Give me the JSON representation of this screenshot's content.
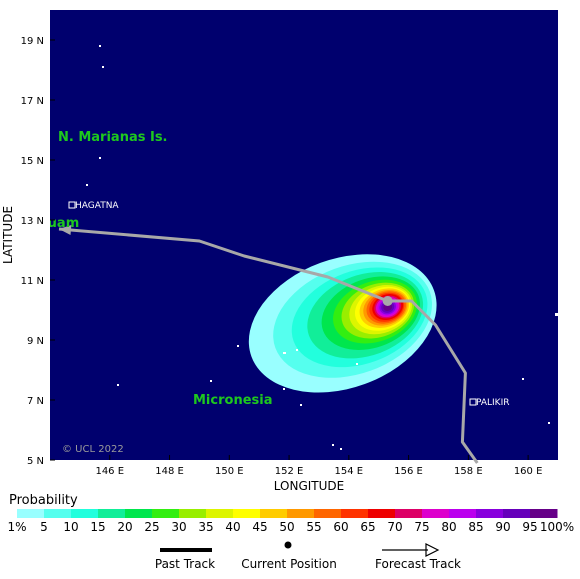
{
  "map": {
    "region_labels": {
      "marianas": "N. Marianas Is.",
      "guam": "Guam",
      "micronesia": "Micronesia"
    },
    "cities": [
      {
        "name": "HAGATNA",
        "lon": 144.75,
        "lat": 13.47
      },
      {
        "name": "PALIKIR",
        "lon": 158.17,
        "lat": 6.92
      }
    ],
    "copyright": "© UCL 2022",
    "x_axis": {
      "label": "LONGITUDE",
      "range": [
        144,
        161
      ],
      "ticks": [
        {
          "v": 146,
          "t": "146 E"
        },
        {
          "v": 148,
          "t": "148 E"
        },
        {
          "v": 150,
          "t": "150 E"
        },
        {
          "v": 152,
          "t": "152 E"
        },
        {
          "v": 154,
          "t": "154 E"
        },
        {
          "v": 156,
          "t": "156 E"
        },
        {
          "v": 158,
          "t": "158 E"
        },
        {
          "v": 160,
          "t": "160 E"
        }
      ]
    },
    "y_axis": {
      "label": "LATITUDE",
      "range": [
        5,
        20
      ],
      "ticks": [
        {
          "v": 5,
          "t": "5 N"
        },
        {
          "v": 7,
          "t": "7 N"
        },
        {
          "v": 9,
          "t": "9 N"
        },
        {
          "v": 11,
          "t": "11 N"
        },
        {
          "v": 13,
          "t": "13 N"
        },
        {
          "v": 15,
          "t": "15 N"
        },
        {
          "v": 17,
          "t": "17 N"
        },
        {
          "v": 19,
          "t": "19 N"
        }
      ]
    },
    "colors": {
      "ocean": "#00006e",
      "track": "#a8a8a8",
      "region_text": "#1ec81e"
    },
    "current_position": {
      "lon": 155.3,
      "lat": 10.3
    },
    "past_track": [
      {
        "lon": 158.3,
        "lat": 4.9
      },
      {
        "lon": 157.8,
        "lat": 5.6
      },
      {
        "lon": 157.9,
        "lat": 7.9
      },
      {
        "lon": 156.9,
        "lat": 9.5
      },
      {
        "lon": 156.1,
        "lat": 10.3
      },
      {
        "lon": 155.3,
        "lat": 10.3
      }
    ],
    "forecast_track": [
      {
        "lon": 155.3,
        "lat": 10.3
      },
      {
        "lon": 153.3,
        "lat": 11.1
      },
      {
        "lon": 150.5,
        "lat": 11.8
      },
      {
        "lon": 149.0,
        "lat": 12.3
      },
      {
        "lon": 144.3,
        "lat": 12.7
      }
    ],
    "probability_field": {
      "center_lon": 155.3,
      "center_lat": 10.1,
      "axis_angle_deg": 20,
      "levels": [
        {
          "p": 1,
          "a": 3.25,
          "b": 2.15,
          "shift": -1.6
        },
        {
          "p": 5,
          "a": 2.75,
          "b": 1.8,
          "shift": -1.25
        },
        {
          "p": 10,
          "a": 2.35,
          "b": 1.55,
          "shift": -1.0
        },
        {
          "p": 15,
          "a": 2.0,
          "b": 1.35,
          "shift": -0.8
        },
        {
          "p": 20,
          "a": 1.7,
          "b": 1.15,
          "shift": -0.6
        },
        {
          "p": 25,
          "a": 1.45,
          "b": 1.0,
          "shift": -0.45
        },
        {
          "p": 30,
          "a": 1.25,
          "b": 0.88,
          "shift": -0.35
        },
        {
          "p": 35,
          "a": 1.08,
          "b": 0.78,
          "shift": -0.25
        },
        {
          "p": 40,
          "a": 0.95,
          "b": 0.7,
          "shift": -0.18
        },
        {
          "p": 45,
          "a": 0.85,
          "b": 0.63,
          "shift": -0.12
        },
        {
          "p": 50,
          "a": 0.76,
          "b": 0.57,
          "shift": -0.08
        },
        {
          "p": 55,
          "a": 0.68,
          "b": 0.52,
          "shift": -0.05
        },
        {
          "p": 60,
          "a": 0.6,
          "b": 0.47,
          "shift": -0.03
        },
        {
          "p": 65,
          "a": 0.53,
          "b": 0.42,
          "shift": 0
        },
        {
          "p": 70,
          "a": 0.46,
          "b": 0.37,
          "shift": 0
        },
        {
          "p": 75,
          "a": 0.4,
          "b": 0.33,
          "shift": 0
        },
        {
          "p": 80,
          "a": 0.34,
          "b": 0.28,
          "shift": 0
        },
        {
          "p": 85,
          "a": 0.28,
          "b": 0.24,
          "shift": 0
        },
        {
          "p": 90,
          "a": 0.22,
          "b": 0.19,
          "shift": 0
        },
        {
          "p": 95,
          "a": 0.15,
          "b": 0.13,
          "shift": 0
        }
      ]
    }
  },
  "legend": {
    "title": "Probability",
    "scale": [
      {
        "label": "1%",
        "color": "#99ffff"
      },
      {
        "label": "5",
        "color": "#55ffee"
      },
      {
        "label": "10",
        "color": "#22ffdd"
      },
      {
        "label": "15",
        "color": "#11ee99"
      },
      {
        "label": "20",
        "color": "#00e64d"
      },
      {
        "label": "25",
        "color": "#33ee11"
      },
      {
        "label": "30",
        "color": "#99ee00"
      },
      {
        "label": "35",
        "color": "#ddf500"
      },
      {
        "label": "40",
        "color": "#ffff00"
      },
      {
        "label": "45",
        "color": "#ffcc00"
      },
      {
        "label": "50",
        "color": "#ff9900"
      },
      {
        "label": "55",
        "color": "#ff6600"
      },
      {
        "label": "60",
        "color": "#ff3300"
      },
      {
        "label": "65",
        "color": "#ee0000"
      },
      {
        "label": "70",
        "color": "#dd0066"
      },
      {
        "label": "75",
        "color": "#dd00cc"
      },
      {
        "label": "80",
        "color": "#bb00ee"
      },
      {
        "label": "85",
        "color": "#8800dd"
      },
      {
        "label": "90",
        "color": "#6600bb"
      },
      {
        "label": "95",
        "color": "#660088"
      },
      {
        "label": "100%",
        "color": "#550055"
      }
    ],
    "items": {
      "past_track": "Past Track",
      "current_position": "Current Position",
      "forecast_track": "Forecast Track"
    }
  }
}
